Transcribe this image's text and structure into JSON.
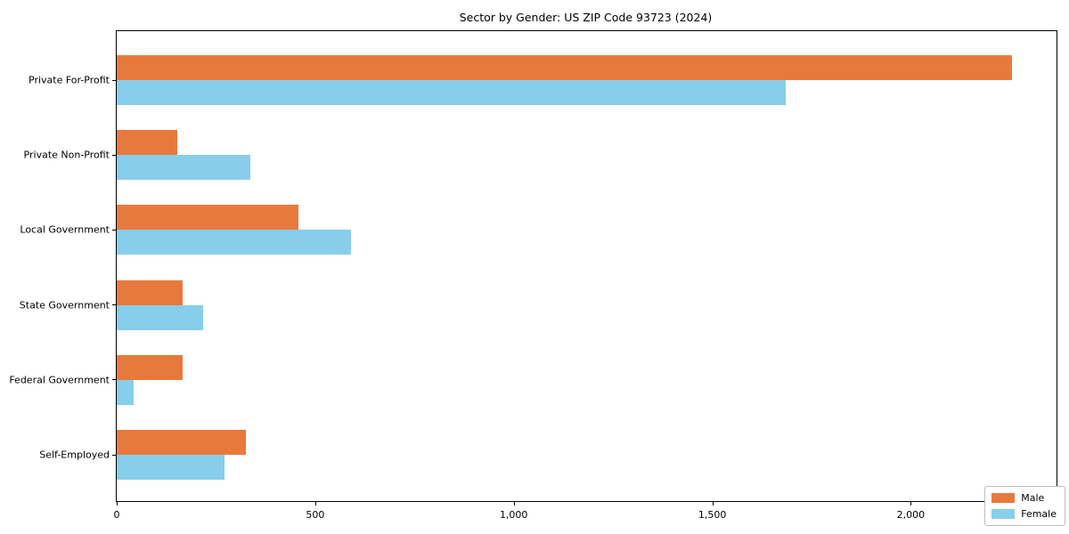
{
  "title": "Sector by Gender: US ZIP Code 93723 (2024)",
  "chart_data": {
    "type": "bar",
    "orientation": "horizontal",
    "title": "Sector by Gender: US ZIP Code 93723 (2024)",
    "xlabel": "",
    "ylabel": "",
    "categories": [
      "Private For-Profit",
      "Private Non-Profit",
      "Local Government",
      "State Government",
      "Federal Government",
      "Self-Employed"
    ],
    "series": [
      {
        "name": "Male",
        "color": "#e8793d",
        "values": [
          2254,
          152,
          458,
          166,
          166,
          325
        ]
      },
      {
        "name": "Female",
        "color": "#87ceeb",
        "values": [
          1684,
          337,
          590,
          218,
          43,
          272
        ]
      }
    ],
    "xlim": [
      0,
      2367
    ],
    "xticks": [
      0,
      500,
      1000,
      1500,
      2000
    ],
    "xtick_labels": [
      "0",
      "500",
      "1,000",
      "1,500",
      "2,000"
    ],
    "grid": false,
    "legend_position": "lower right",
    "legend_items": [
      {
        "label": "Male",
        "color": "#e8793d"
      },
      {
        "label": "Female",
        "color": "#87ceeb"
      }
    ]
  }
}
